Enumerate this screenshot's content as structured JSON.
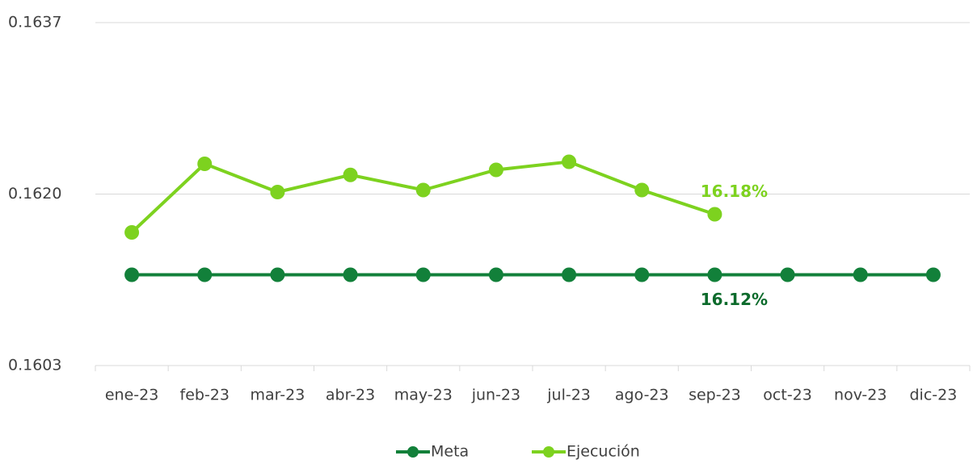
{
  "chart_data": {
    "type": "line",
    "categories": [
      "ene-23",
      "feb-23",
      "mar-23",
      "abr-23",
      "may-23",
      "jun-23",
      "jul-23",
      "ago-23",
      "sep-23",
      "oct-23",
      "nov-23",
      "dic-23"
    ],
    "series": [
      {
        "name": "Meta",
        "color": "#12803a",
        "values": [
          0.1612,
          0.1612,
          0.1612,
          0.1612,
          0.1612,
          0.1612,
          0.1612,
          0.1612,
          0.1612,
          0.1612,
          0.1612,
          0.1612
        ],
        "value_labels": [
          null,
          null,
          null,
          null,
          null,
          null,
          null,
          null,
          "16.12%",
          null,
          null,
          null
        ]
      },
      {
        "name": "Ejecución",
        "color": "#7dd21f",
        "values": [
          0.16162,
          0.1623,
          0.16202,
          0.16219,
          0.16204,
          0.16224,
          0.16232,
          0.16204,
          0.1618,
          null,
          null,
          null
        ],
        "value_labels": [
          null,
          null,
          null,
          null,
          null,
          null,
          null,
          null,
          "16.18%",
          null,
          null,
          null
        ]
      }
    ],
    "ylim": [
      0.1603,
      0.1637
    ],
    "yticks": [
      0.1603,
      {
        "value": 0.162,
        "label": "0.1620"
      },
      0.1637
    ],
    "grid": true,
    "legend": "bottom"
  }
}
